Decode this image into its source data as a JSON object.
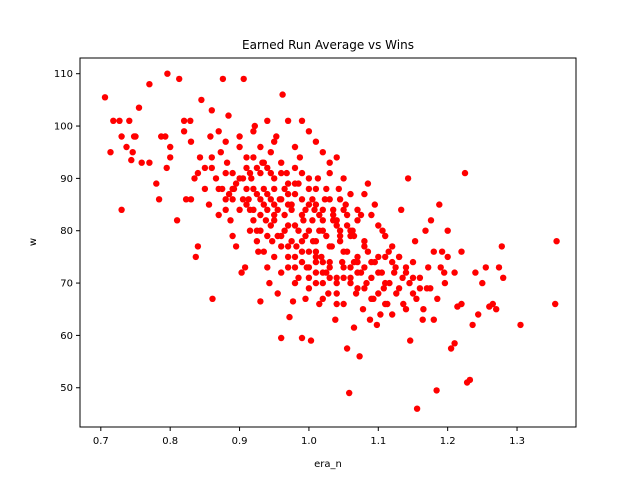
{
  "chart_data": {
    "type": "scatter",
    "title": "Earned Run Average vs Wins",
    "xlabel": "era_n",
    "ylabel": "w",
    "xlim": [
      0.67,
      1.385
    ],
    "ylim": [
      42.5,
      113
    ],
    "xticks": [
      0.7,
      0.8,
      0.9,
      1.0,
      1.1,
      1.2,
      1.3
    ],
    "xtick_labels": [
      "0.7",
      "0.8",
      "0.9",
      "1.0",
      "1.1",
      "1.2",
      "1.3"
    ],
    "yticks": [
      50,
      60,
      70,
      80,
      90,
      100,
      110
    ],
    "ytick_labels": [
      "50",
      "60",
      "70",
      "80",
      "90",
      "100",
      "110"
    ],
    "grid": false,
    "legend": "none",
    "marker_color": "#ff0000",
    "points": [
      [
        0.706,
        105.5
      ],
      [
        0.714,
        95
      ],
      [
        0.718,
        101
      ],
      [
        0.727,
        101
      ],
      [
        0.73,
        84
      ],
      [
        0.73,
        98
      ],
      [
        0.737,
        96
      ],
      [
        0.741,
        101
      ],
      [
        0.744,
        93.5
      ],
      [
        0.746,
        95
      ],
      [
        0.748,
        98
      ],
      [
        0.75,
        98
      ],
      [
        0.755,
        103.5
      ],
      [
        0.759,
        93
      ],
      [
        0.77,
        108
      ],
      [
        0.77,
        93
      ],
      [
        0.78,
        89
      ],
      [
        0.784,
        86
      ],
      [
        0.787,
        98
      ],
      [
        0.793,
        98
      ],
      [
        0.795,
        92
      ],
      [
        0.796,
        110
      ],
      [
        0.8,
        94
      ],
      [
        0.8,
        96
      ],
      [
        0.81,
        82
      ],
      [
        0.813,
        109
      ],
      [
        0.82,
        101
      ],
      [
        0.82,
        99
      ],
      [
        0.823,
        86
      ],
      [
        0.829,
        101
      ],
      [
        0.83,
        97
      ],
      [
        0.835,
        90
      ],
      [
        0.837,
        75
      ],
      [
        0.84,
        77
      ],
      [
        0.843,
        94
      ],
      [
        0.845,
        105
      ],
      [
        0.85,
        92
      ],
      [
        0.856,
        85
      ],
      [
        0.858,
        98
      ],
      [
        0.861,
        67
      ],
      [
        0.86,
        103
      ],
      [
        0.866,
        90
      ],
      [
        0.87,
        99
      ],
      [
        0.873,
        95
      ],
      [
        0.876,
        109
      ],
      [
        0.88,
        86
      ],
      [
        0.882,
        93
      ],
      [
        0.884,
        102
      ],
      [
        0.887,
        82
      ],
      [
        0.89,
        79
      ],
      [
        0.892,
        88
      ],
      [
        0.895,
        77
      ],
      [
        0.9,
        96
      ],
      [
        0.903,
        72
      ],
      [
        0.906,
        109
      ],
      [
        0.908,
        73
      ],
      [
        0.91,
        92
      ],
      [
        0.913,
        86
      ],
      [
        0.917,
        90
      ],
      [
        0.92,
        84
      ],
      [
        0.922,
        100
      ],
      [
        0.925,
        80
      ],
      [
        0.927,
        76
      ],
      [
        0.93,
        66.5
      ],
      [
        0.933,
        93
      ],
      [
        0.935,
        88
      ],
      [
        0.938,
        82
      ],
      [
        0.94,
        73
      ],
      [
        0.943,
        70
      ],
      [
        0.945,
        95
      ],
      [
        0.947,
        78
      ],
      [
        0.95,
        85
      ],
      [
        0.953,
        98
      ],
      [
        0.955,
        68
      ],
      [
        0.958,
        86
      ],
      [
        0.96,
        59.5
      ],
      [
        0.962,
        106
      ],
      [
        0.965,
        80
      ],
      [
        0.968,
        91
      ],
      [
        0.97,
        75
      ],
      [
        0.972,
        63.5
      ],
      [
        0.975,
        84
      ],
      [
        0.977,
        66.5
      ],
      [
        0.98,
        89
      ],
      [
        0.982,
        77
      ],
      [
        0.985,
        71
      ],
      [
        0.987,
        94
      ],
      [
        0.99,
        59.5
      ],
      [
        0.992,
        82
      ],
      [
        0.995,
        67
      ],
      [
        0.997,
        73
      ],
      [
        1.0,
        88
      ],
      [
        1.003,
        59
      ],
      [
        1.006,
        78
      ],
      [
        1.008,
        84
      ],
      [
        1.01,
        70
      ],
      [
        1.013,
        90
      ],
      [
        1.015,
        66
      ],
      [
        1.018,
        75
      ],
      [
        1.02,
        80
      ],
      [
        1.023,
        86
      ],
      [
        1.025,
        72
      ],
      [
        1.028,
        68
      ],
      [
        1.03,
        91
      ],
      [
        1.033,
        77
      ],
      [
        1.035,
        83
      ],
      [
        1.038,
        63
      ],
      [
        1.04,
        70
      ],
      [
        1.043,
        88
      ],
      [
        1.045,
        79
      ],
      [
        1.048,
        74
      ],
      [
        1.05,
        66
      ],
      [
        1.053,
        85
      ],
      [
        1.055,
        57.5
      ],
      [
        1.058,
        49
      ],
      [
        1.06,
        71
      ],
      [
        1.063,
        80
      ],
      [
        1.065,
        61.5
      ],
      [
        1.068,
        68
      ],
      [
        1.07,
        74
      ],
      [
        1.073,
        56
      ],
      [
        1.075,
        83
      ],
      [
        1.078,
        65
      ],
      [
        1.08,
        78
      ],
      [
        1.083,
        70
      ],
      [
        1.085,
        89
      ],
      [
        1.088,
        63
      ],
      [
        1.09,
        74
      ],
      [
        1.093,
        67
      ],
      [
        1.095,
        85
      ],
      [
        1.098,
        62
      ],
      [
        1.1,
        72
      ],
      [
        1.103,
        64
      ],
      [
        1.106,
        80
      ],
      [
        1.108,
        69
      ],
      [
        1.11,
        75
      ],
      [
        1.113,
        66
      ],
      [
        1.116,
        70
      ],
      [
        1.12,
        64
      ],
      [
        1.123,
        72
      ],
      [
        1.126,
        68
      ],
      [
        1.13,
        75
      ],
      [
        1.133,
        84
      ],
      [
        1.136,
        66
      ],
      [
        1.14,
        73
      ],
      [
        1.143,
        90
      ],
      [
        1.146,
        59
      ],
      [
        1.15,
        71
      ],
      [
        1.153,
        78
      ],
      [
        1.156,
        46
      ],
      [
        1.16,
        69
      ],
      [
        1.164,
        63
      ],
      [
        1.168,
        80
      ],
      [
        1.172,
        73
      ],
      [
        1.176,
        82
      ],
      [
        1.18,
        63
      ],
      [
        1.184,
        49.5
      ],
      [
        1.188,
        85
      ],
      [
        1.192,
        76
      ],
      [
        1.196,
        70
      ],
      [
        1.2,
        80
      ],
      [
        1.205,
        57.5
      ],
      [
        1.21,
        58.5
      ],
      [
        1.214,
        65.5
      ],
      [
        1.22,
        66
      ],
      [
        1.225,
        91
      ],
      [
        1.228,
        51
      ],
      [
        1.232,
        51.5
      ],
      [
        1.236,
        62
      ],
      [
        1.24,
        72
      ],
      [
        1.244,
        64
      ],
      [
        1.25,
        70
      ],
      [
        1.255,
        73
      ],
      [
        1.26,
        65.5
      ],
      [
        1.265,
        66
      ],
      [
        1.27,
        65
      ],
      [
        1.274,
        73
      ],
      [
        1.278,
        77
      ],
      [
        1.28,
        71
      ],
      [
        1.305,
        62
      ],
      [
        1.355,
        66
      ],
      [
        1.357,
        78
      ],
      [
        0.93,
        80
      ],
      [
        0.94,
        84
      ],
      [
        0.95,
        82
      ],
      [
        0.96,
        79
      ],
      [
        0.97,
        85
      ],
      [
        0.98,
        81
      ],
      [
        0.99,
        83
      ],
      [
        1.0,
        80
      ],
      [
        1.01,
        78
      ],
      [
        1.02,
        82
      ],
      [
        1.03,
        77
      ],
      [
        1.04,
        81
      ],
      [
        1.05,
        76
      ],
      [
        1.06,
        79
      ],
      [
        1.07,
        75
      ],
      [
        1.08,
        77
      ],
      [
        0.92,
        88
      ],
      [
        0.93,
        91
      ],
      [
        0.94,
        87
      ],
      [
        0.95,
        90
      ],
      [
        0.96,
        86
      ],
      [
        0.97,
        89
      ],
      [
        0.98,
        87
      ],
      [
        0.99,
        91
      ],
      [
        1.0,
        85
      ],
      [
        1.01,
        88
      ],
      [
        1.02,
        84
      ],
      [
        1.03,
        86
      ],
      [
        1.04,
        82
      ],
      [
        1.05,
        84
      ],
      [
        1.06,
        80
      ],
      [
        1.07,
        82
      ],
      [
        0.88,
        84
      ],
      [
        0.89,
        88
      ],
      [
        0.9,
        84
      ],
      [
        0.91,
        88
      ],
      [
        0.92,
        82
      ],
      [
        0.93,
        86
      ],
      [
        0.94,
        79
      ],
      [
        0.95,
        83
      ],
      [
        0.96,
        77
      ],
      [
        0.97,
        81
      ],
      [
        0.98,
        75
      ],
      [
        0.99,
        78
      ],
      [
        1.0,
        73
      ],
      [
        1.01,
        76
      ],
      [
        1.02,
        72
      ],
      [
        1.03,
        74
      ],
      [
        1.04,
        71
      ],
      [
        1.05,
        73
      ],
      [
        1.06,
        70
      ],
      [
        1.07,
        72
      ],
      [
        1.08,
        69
      ],
      [
        1.09,
        71
      ],
      [
        1.1,
        68
      ],
      [
        1.11,
        70
      ],
      [
        0.86,
        92
      ],
      [
        0.87,
        88
      ],
      [
        0.88,
        91
      ],
      [
        0.89,
        86
      ],
      [
        0.9,
        90
      ],
      [
        0.91,
        85
      ],
      [
        0.92,
        94
      ],
      [
        0.93,
        83
      ],
      [
        0.94,
        92
      ],
      [
        0.95,
        88
      ],
      [
        0.96,
        93
      ],
      [
        0.97,
        87
      ],
      [
        0.98,
        92
      ],
      [
        0.99,
        86
      ],
      [
        1.0,
        90
      ],
      [
        1.01,
        85
      ],
      [
        0.83,
        86
      ],
      [
        0.84,
        91
      ],
      [
        0.85,
        88
      ],
      [
        0.86,
        94
      ],
      [
        0.87,
        83
      ],
      [
        0.88,
        97
      ],
      [
        0.89,
        91
      ],
      [
        0.9,
        98
      ],
      [
        0.91,
        94
      ],
      [
        0.92,
        99
      ],
      [
        0.93,
        96
      ],
      [
        0.94,
        101
      ],
      [
        0.95,
        97
      ],
      [
        0.96,
        91
      ],
      [
        0.97,
        101
      ],
      [
        0.98,
        96
      ],
      [
        0.99,
        101
      ],
      [
        1.0,
        99
      ],
      [
        1.01,
        97
      ],
      [
        1.02,
        95
      ],
      [
        1.03,
        93
      ],
      [
        1.04,
        94
      ],
      [
        1.05,
        90
      ],
      [
        1.06,
        87
      ],
      [
        1.07,
        84
      ],
      [
        1.08,
        87
      ],
      [
        1.09,
        83
      ],
      [
        1.1,
        81
      ],
      [
        1.11,
        79
      ],
      [
        1.12,
        77
      ],
      [
        1.13,
        75
      ],
      [
        1.14,
        72
      ],
      [
        1.15,
        74
      ],
      [
        1.16,
        71
      ],
      [
        1.17,
        69
      ],
      [
        1.18,
        76
      ],
      [
        1.19,
        73
      ],
      [
        1.2,
        75
      ],
      [
        1.21,
        72
      ],
      [
        1.22,
        76
      ],
      [
        1.0,
        76
      ],
      [
        1.01,
        74
      ],
      [
        1.02,
        70
      ],
      [
        1.03,
        73
      ],
      [
        1.04,
        68
      ],
      [
        1.05,
        71
      ],
      [
        1.06,
        73
      ],
      [
        1.07,
        69
      ],
      [
        1.08,
        73
      ],
      [
        1.09,
        67
      ],
      [
        1.1,
        75
      ],
      [
        1.11,
        66
      ],
      [
        1.12,
        74
      ],
      [
        1.13,
        69
      ],
      [
        1.14,
        65
      ],
      [
        1.15,
        68
      ],
      [
        0.97,
        73
      ],
      [
        0.98,
        70
      ],
      [
        0.99,
        74
      ],
      [
        1.0,
        69
      ],
      [
        1.01,
        72
      ],
      [
        1.02,
        67
      ],
      [
        1.03,
        71
      ],
      [
        1.04,
        66
      ],
      [
        0.95,
        75
      ],
      [
        0.96,
        72
      ],
      [
        0.97,
        77
      ],
      [
        0.98,
        73
      ],
      [
        0.99,
        76
      ],
      [
        1.0,
        71
      ],
      [
        1.01,
        75
      ],
      [
        1.02,
        74
      ],
      [
        1.045,
        78
      ],
      [
        1.055,
        76
      ],
      [
        1.065,
        74
      ],
      [
        1.075,
        72
      ],
      [
        1.085,
        76
      ],
      [
        1.095,
        74
      ],
      [
        1.105,
        72
      ],
      [
        1.115,
        76
      ],
      [
        1.125,
        73
      ],
      [
        1.135,
        71
      ],
      [
        1.145,
        70
      ],
      [
        1.155,
        67
      ],
      [
        1.165,
        65
      ],
      [
        1.175,
        69
      ],
      [
        1.185,
        67
      ],
      [
        1.195,
        72
      ],
      [
        0.915,
        80
      ],
      [
        0.925,
        78
      ],
      [
        0.935,
        76
      ],
      [
        0.945,
        81
      ],
      [
        0.955,
        79
      ],
      [
        0.965,
        83
      ],
      [
        0.975,
        78
      ],
      [
        0.985,
        80
      ],
      [
        0.995,
        79
      ],
      [
        1.005,
        82
      ],
      [
        1.015,
        80
      ],
      [
        1.025,
        79
      ],
      [
        1.035,
        82
      ],
      [
        1.045,
        80
      ],
      [
        1.055,
        81
      ],
      [
        1.065,
        79
      ],
      [
        0.905,
        86
      ],
      [
        0.915,
        84
      ],
      [
        0.925,
        87
      ],
      [
        0.935,
        85
      ],
      [
        0.945,
        86
      ],
      [
        0.955,
        84
      ],
      [
        0.965,
        88
      ],
      [
        0.975,
        85
      ],
      [
        0.985,
        89
      ],
      [
        0.995,
        84
      ],
      [
        1.005,
        86
      ],
      [
        1.015,
        83
      ],
      [
        1.025,
        88
      ],
      [
        1.035,
        84
      ],
      [
        1.045,
        86
      ],
      [
        1.055,
        83
      ],
      [
        0.875,
        88
      ],
      [
        0.885,
        87
      ],
      [
        0.895,
        89
      ],
      [
        0.905,
        90
      ],
      [
        0.915,
        91
      ],
      [
        0.925,
        92
      ],
      [
        0.935,
        93
      ],
      [
        0.945,
        91
      ]
    ]
  }
}
